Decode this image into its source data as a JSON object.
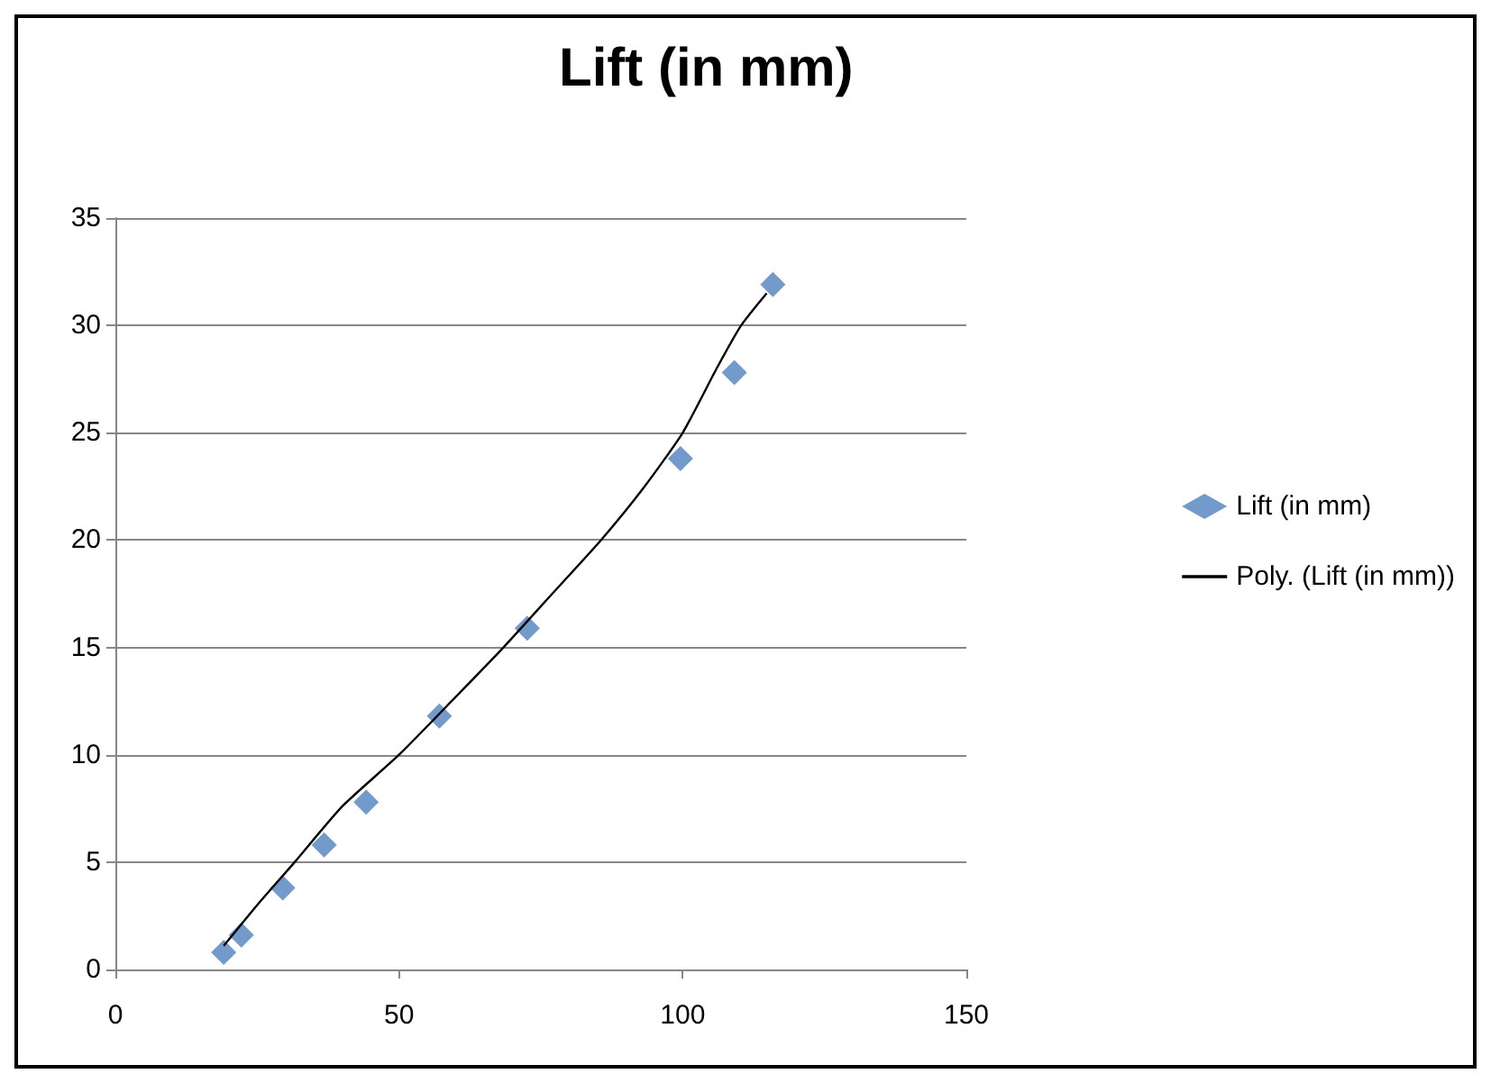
{
  "chart_data": {
    "type": "scatter",
    "title": "Lift (in mm)",
    "xlim": [
      0,
      150
    ],
    "xticks": [
      0,
      50,
      100,
      150
    ],
    "ylim": [
      0,
      35
    ],
    "yticks": [
      0,
      5,
      10,
      15,
      20,
      25,
      30,
      35
    ],
    "grid": "y",
    "legend": "right",
    "series": [
      {
        "name": "Lift (in mm)",
        "marker": "diamond",
        "color": "#4f81bd",
        "x": [
          19.1,
          22.2,
          29.5,
          36.8,
          44.2,
          57.1,
          72.6,
          99.6,
          109.1,
          115.9
        ],
        "values": [
          0.8,
          1.6,
          3.8,
          5.8,
          7.8,
          11.8,
          15.9,
          23.8,
          27.8,
          31.9
        ]
      },
      {
        "name": "Poly. (Lift (in mm))",
        "type": "line",
        "marker": "none",
        "color": "#000000",
        "x": [
          19.1,
          25,
          31.6,
          40,
          50,
          60,
          68.4,
          77,
          85.6,
          93,
          100,
          106,
          110.3,
          114.8
        ],
        "values": [
          1.1,
          3,
          5,
          7.6,
          10,
          12.7,
          15,
          17.5,
          20,
          22.4,
          25,
          28,
          30,
          31.5
        ]
      }
    ]
  }
}
